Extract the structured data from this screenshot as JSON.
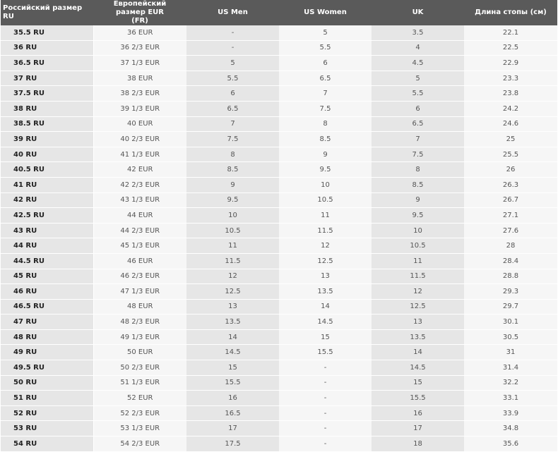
{
  "headers": {
    "ru": "Российский размер RU",
    "eur": "Европейский размер EUR (FR)",
    "us_men": "US Men",
    "us_women": "US Women",
    "uk": "UK",
    "length": "Длина стопы (см)"
  },
  "rows": [
    [
      "35.5 RU",
      "36 EUR",
      "-",
      "5",
      "3.5",
      "22.1"
    ],
    [
      "36 RU",
      "36 2/3 EUR",
      "-",
      "5.5",
      "4",
      "22.5"
    ],
    [
      "36.5 RU",
      "37 1/3 EUR",
      "5",
      "6",
      "4.5",
      "22.9"
    ],
    [
      "37 RU",
      "38 EUR",
      "5.5",
      "6.5",
      "5",
      "23.3"
    ],
    [
      "37.5 RU",
      "38 2/3 EUR",
      "6",
      "7",
      "5.5",
      "23.8"
    ],
    [
      "38 RU",
      "39 1/3 EUR",
      "6.5",
      "7.5",
      "6",
      "24.2"
    ],
    [
      "38.5 RU",
      "40 EUR",
      "7",
      "8",
      "6.5",
      "24.6"
    ],
    [
      "39 RU",
      "40 2/3 EUR",
      "7.5",
      "8.5",
      "7",
      "25"
    ],
    [
      "40 RU",
      "41 1/3 EUR",
      "8",
      "9",
      "7.5",
      "25.5"
    ],
    [
      "40.5 RU",
      "42 EUR",
      "8.5",
      "9.5",
      "8",
      "26"
    ],
    [
      "41 RU",
      "42 2/3 EUR",
      "9",
      "10",
      "8.5",
      "26.3"
    ],
    [
      "42 RU",
      "43 1/3 EUR",
      "9.5",
      "10.5",
      "9",
      "26.7"
    ],
    [
      "42.5 RU",
      "44 EUR",
      "10",
      "11",
      "9.5",
      "27.1"
    ],
    [
      "43 RU",
      "44 2/3 EUR",
      "10.5",
      "11.5",
      "10",
      "27.6"
    ],
    [
      "44 RU",
      "45 1/3 EUR",
      "11",
      "12",
      "10.5",
      "28"
    ],
    [
      "44.5 RU",
      "46 EUR",
      "11.5",
      "12.5",
      "11",
      "28.4"
    ],
    [
      "45 RU",
      "46 2/3 EUR",
      "12",
      "13",
      "11.5",
      "28.8"
    ],
    [
      "46 RU",
      "47 1/3 EUR",
      "12.5",
      "13.5",
      "12",
      "29.3"
    ],
    [
      "46.5 RU",
      "48 EUR",
      "13",
      "14",
      "12.5",
      "29.7"
    ],
    [
      "47 RU",
      "48 2/3 EUR",
      "13.5",
      "14.5",
      "13",
      "30.1"
    ],
    [
      "48 RU",
      "49 1/3 EUR",
      "14",
      "15",
      "13.5",
      "30.5"
    ],
    [
      "49 RU",
      "50 EUR",
      "14.5",
      "15.5",
      "14",
      "31"
    ],
    [
      "49.5 RU",
      "50 2/3 EUR",
      "15",
      "-",
      "14.5",
      "31.4"
    ],
    [
      "50 RU",
      "51 1/3 EUR",
      "15.5",
      "-",
      "15",
      "32.2"
    ],
    [
      "51 RU",
      "52 EUR",
      "16",
      "-",
      "15.5",
      "33.1"
    ],
    [
      "52 RU",
      "52 2/3 EUR",
      "16.5",
      "-",
      "16",
      "33.9"
    ],
    [
      "53 RU",
      "53 1/3 EUR",
      "17",
      "-",
      "17",
      "34.8"
    ],
    [
      "54 RU",
      "54 2/3 EUR",
      "17.5",
      "-",
      "18",
      "35.6"
    ]
  ],
  "colors": {
    "header_bg": "#5a5a5a",
    "header_text": "#ffffff",
    "band_dark": "#e6e6e6",
    "band_light": "#f6f6f6"
  }
}
